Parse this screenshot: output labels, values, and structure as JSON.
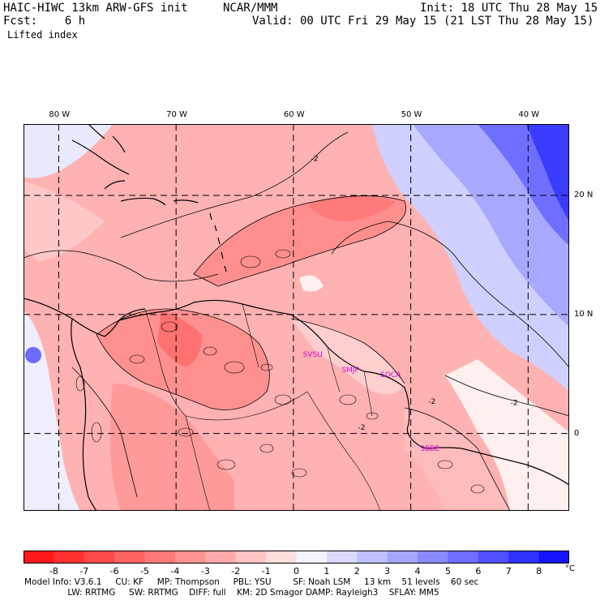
{
  "header": {
    "title_left": "HAIC-HIWC 13km ARW-GFS init",
    "org": "NCAR/MMM",
    "init": "Init: 18 UTC Thu 28 May 15",
    "fcst": "Fcst:    6 h",
    "valid": "Valid: 00 UTC Fri 29 May 15 (21 LST Thu 28 May 15)",
    "field": "Lifted index"
  },
  "map": {
    "lon_ticks": [
      {
        "label": "80 W",
        "lon": -80
      },
      {
        "label": "70 W",
        "lon": -70
      },
      {
        "label": "60 W",
        "lon": -60
      },
      {
        "label": "50 W",
        "lon": -50
      },
      {
        "label": "40 W",
        "lon": -40
      }
    ],
    "lat_ticks": [
      {
        "label": "20 N",
        "lat": 20
      },
      {
        "label": "10 N",
        "lat": 10
      },
      {
        "label": "0",
        "lat": 0
      }
    ],
    "lon_range": [
      -83,
      -36.5
    ],
    "lat_range": [
      -6.5,
      26
    ],
    "stations": [
      {
        "label": "SVSU",
        "lon": -58.5,
        "lat": 6.5
      },
      {
        "label": "SMJP",
        "lon": -55.2,
        "lat": 5.2
      },
      {
        "label": "SOCA",
        "lon": -51.9,
        "lat": 4.8
      },
      {
        "label": "SBBE",
        "lon": -48.5,
        "lat": -1.4
      }
    ],
    "contour_labels": [
      {
        "label": "-2",
        "lon": -58.5,
        "lat": 22.9
      },
      {
        "label": "-2",
        "lon": -48.5,
        "lat": 2.5
      },
      {
        "label": "-2",
        "lon": -41.5,
        "lat": 2.4
      },
      {
        "label": "-2",
        "lon": -54.5,
        "lat": 0.3
      }
    ]
  },
  "colorbar": {
    "labels": [
      "-8",
      "-7",
      "-6",
      "-5",
      "-4",
      "-3",
      "-2",
      "-1",
      "0",
      "1",
      "2",
      "3",
      "4",
      "5",
      "6",
      "7",
      "8"
    ],
    "unit": "°C",
    "colors": [
      "#ff1a1a",
      "#ff3030",
      "#ff4a4a",
      "#ff6262",
      "#ff7a7a",
      "#ff9292",
      "#ffaaaa",
      "#ffc4c4",
      "#ffdede",
      "#f4f4ff",
      "#dadaff",
      "#c0c0ff",
      "#a6a6ff",
      "#8a8aff",
      "#6e6eff",
      "#5050ff",
      "#3232ff",
      "#1414ff"
    ]
  },
  "footer": {
    "line1": "Model Info: V3.6.1     CU: KF     MP: Thompson     PBL: YSU        SF: Noah LSM     13 km    51 levels    60 sec",
    "line2": "                LW: RRTMG     SW: RRTMG    DIFF: full    KM: 2D Smagor DAMP: Rayleigh3    SFLAY: MM5"
  }
}
